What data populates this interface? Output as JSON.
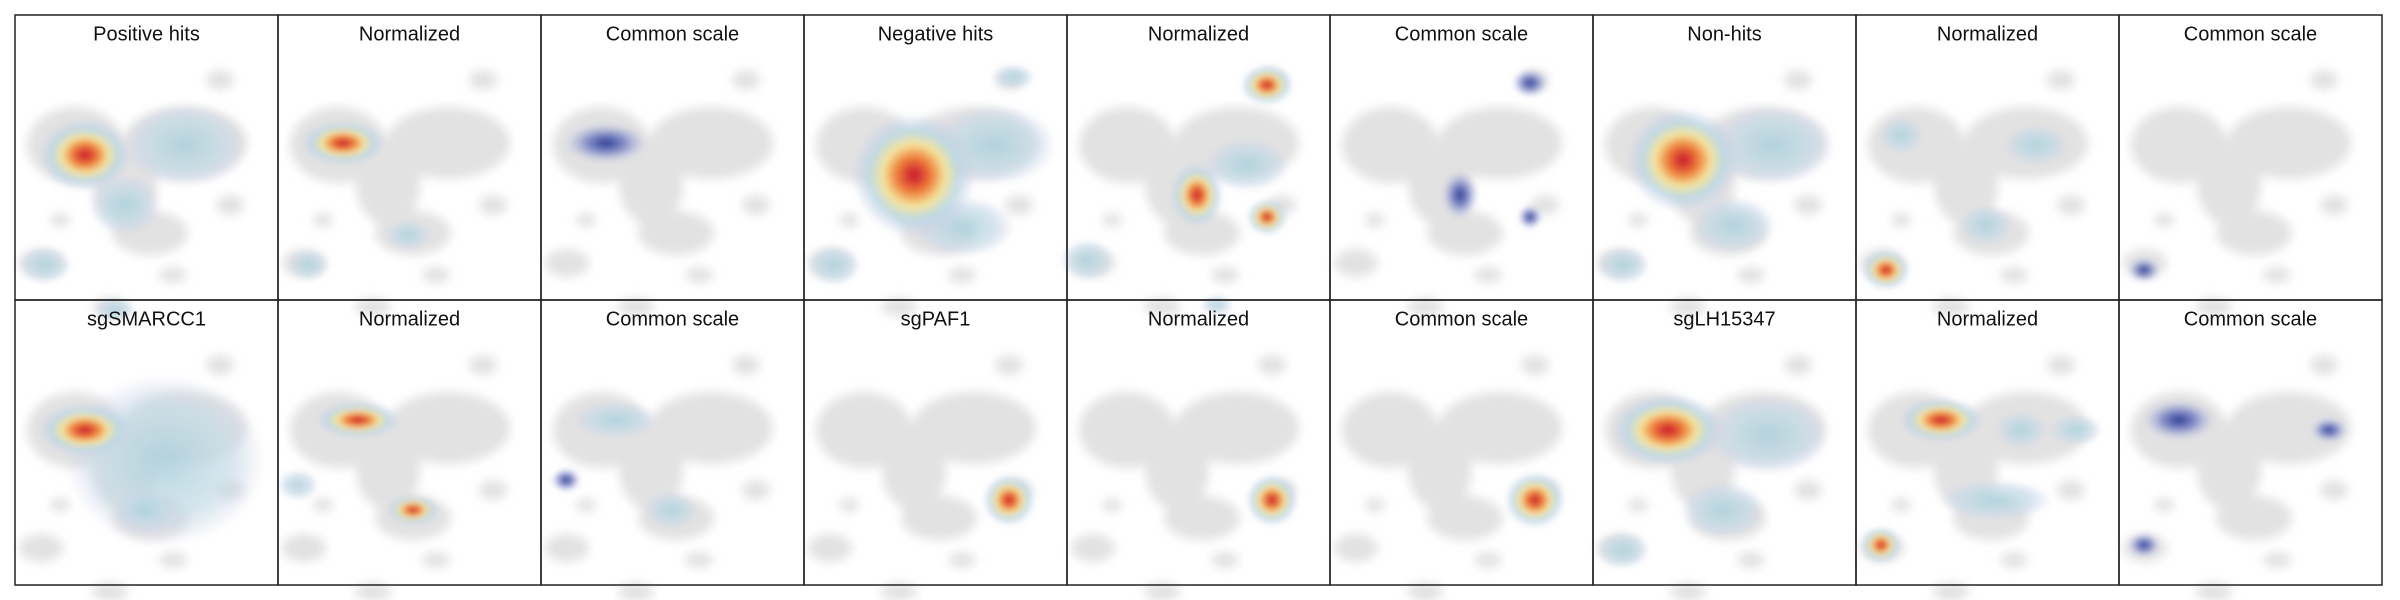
{
  "panels": {
    "rows": [
      [
        "Positive hits",
        "Normalized",
        "Common scale",
        "Negative hits",
        "Normalized",
        "Common scale",
        "Non-hits",
        "Normalized",
        "Common scale"
      ],
      [
        "sgSMARCC1",
        "Normalized",
        "Common scale",
        "sgPAF1",
        "Normalized",
        "Common scale",
        "sgLH15347",
        "Normalized",
        "Common scale"
      ]
    ]
  }
}
